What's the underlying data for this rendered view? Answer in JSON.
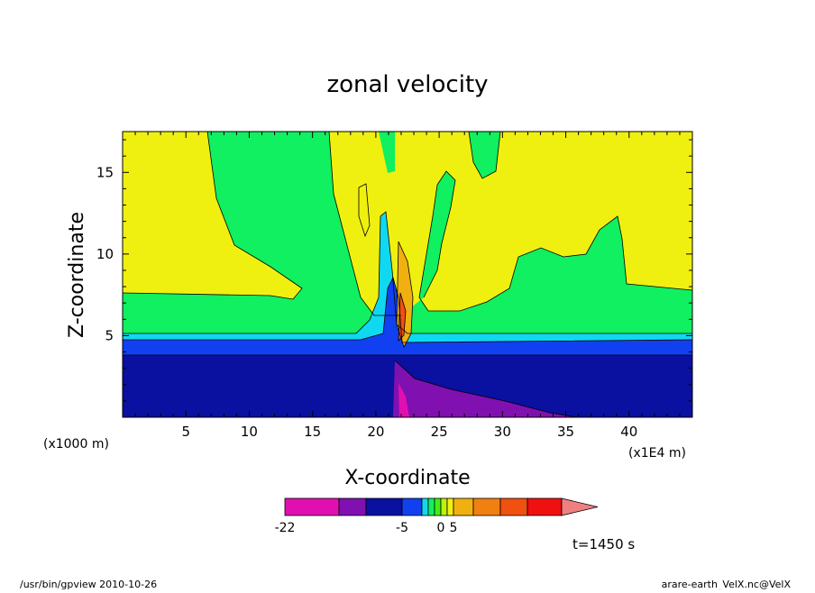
{
  "chart_data": {
    "type": "contour",
    "title": "zonal velocity",
    "xlabel": "X-coordinate",
    "ylabel": "Z-coordinate",
    "x_unit": "(x1E4 m)",
    "y_unit": "(x1000 m)",
    "xlim": [
      0,
      45
    ],
    "ylim": [
      0,
      17.5
    ],
    "x_ticks": [
      "5",
      "10",
      "15",
      "20",
      "25",
      "30",
      "35",
      "40"
    ],
    "x_tick_values": [
      5,
      10,
      15,
      20,
      25,
      30,
      35,
      40
    ],
    "y_ticks": [
      "5",
      "10",
      "15"
    ],
    "y_tick_values": [
      5,
      10,
      15
    ],
    "colorbar": {
      "colors": [
        "#e010b0",
        "#8010b0",
        "#0a10a0",
        "#1040f0",
        "#10d8f0",
        "#10f060",
        "#40f010",
        "#c0f010",
        "#f0f010",
        "#f0b010",
        "#f08010",
        "#f05010",
        "#f01010",
        "#f08080"
      ],
      "labels": [
        "-22",
        "-5",
        "0",
        "5"
      ]
    },
    "time_label": "t=1450 s"
  },
  "footer": {
    "left": "/usr/bin/gpview   2010-10-26",
    "right": "arare-earth_VelX.nc@VelX"
  }
}
